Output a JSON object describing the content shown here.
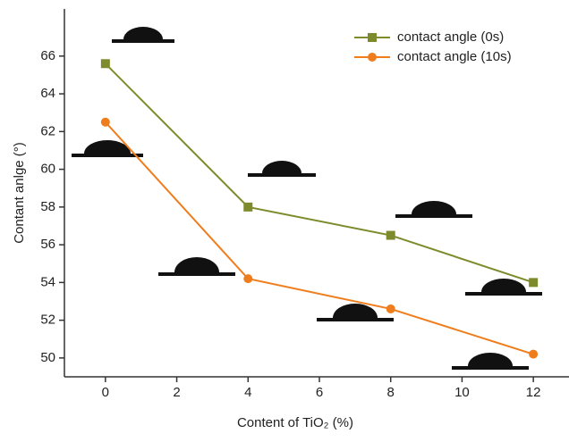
{
  "chart_data": {
    "type": "line",
    "x_label": "Content of TiO₂ (%)",
    "y_label": "Contant anlge (°)",
    "x": [
      0,
      4,
      8,
      12
    ],
    "series": [
      {
        "name": "contact angle (0s)",
        "color": "#7e8b2c",
        "marker": "square",
        "values": [
          65.6,
          58,
          56.5,
          54
        ]
      },
      {
        "name": "contact angle (10s)",
        "color": "#f07d1c",
        "marker": "circle",
        "values": [
          62.5,
          54.2,
          52.6,
          50.2
        ]
      }
    ],
    "xlim": [
      -1.15,
      13
    ],
    "xticks": [
      0,
      2,
      4,
      6,
      8,
      10,
      12
    ],
    "ylim": [
      49,
      68.5
    ],
    "yticks": [
      50,
      52,
      54,
      56,
      58,
      60,
      62,
      64,
      66
    ],
    "legend": "upper right"
  }
}
